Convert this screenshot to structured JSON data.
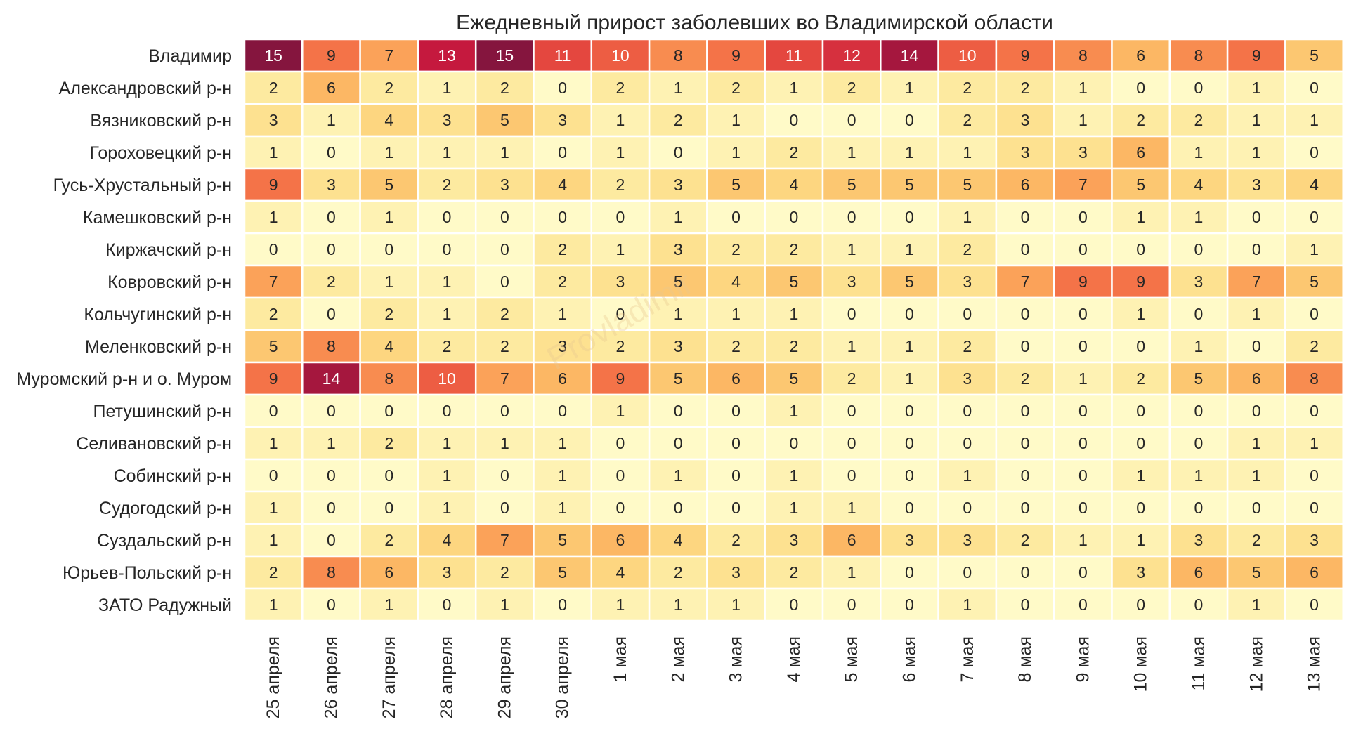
{
  "chart_data": {
    "type": "heatmap",
    "title": "Ежедневный прирост заболевших во Владимирской области",
    "xlabel": "",
    "ylabel": "",
    "watermark": "Provladimir",
    "columns": [
      "25 апреля",
      "26 апреля",
      "27 апреля",
      "28 апреля",
      "29 апреля",
      "30 апреля",
      "1 мая",
      "2 мая",
      "3 мая",
      "4 мая",
      "5 мая",
      "6 мая",
      "7 мая",
      "8 мая",
      "9 мая",
      "10 мая",
      "11 мая",
      "12 мая",
      "13 мая"
    ],
    "rows": [
      "Владимир",
      "Александровский р-н",
      "Вязниковский р-н",
      "Гороховецкий р-н",
      "Гусь-Хрустальный р-н",
      "Камешковский р-н",
      "Киржачский р-н",
      "Ковровский р-н",
      "Кольчугинский р-н",
      "Меленковский р-н",
      "Муромский р-н и о. Муром",
      "Петушинский р-н",
      "Селивановский р-н",
      "Собинский р-н",
      "Судогодский р-н",
      "Суздальский р-н",
      "Юрьев-Польский р-н",
      "ЗАТО Радужный"
    ],
    "values": [
      [
        15,
        9,
        7,
        13,
        15,
        11,
        10,
        8,
        9,
        11,
        12,
        14,
        10,
        9,
        8,
        6,
        8,
        9,
        5
      ],
      [
        2,
        6,
        2,
        1,
        2,
        0,
        2,
        1,
        2,
        1,
        2,
        1,
        2,
        2,
        1,
        0,
        0,
        1,
        0
      ],
      [
        3,
        1,
        4,
        3,
        5,
        3,
        1,
        2,
        1,
        0,
        0,
        0,
        2,
        3,
        1,
        2,
        2,
        1,
        1
      ],
      [
        1,
        0,
        1,
        1,
        1,
        0,
        1,
        0,
        1,
        2,
        1,
        1,
        1,
        3,
        3,
        6,
        1,
        1,
        0
      ],
      [
        9,
        3,
        5,
        2,
        3,
        4,
        2,
        3,
        5,
        4,
        5,
        5,
        5,
        6,
        7,
        5,
        4,
        3,
        4
      ],
      [
        1,
        0,
        1,
        0,
        0,
        0,
        0,
        1,
        0,
        0,
        0,
        0,
        1,
        0,
        0,
        1,
        1,
        0,
        0
      ],
      [
        0,
        0,
        0,
        0,
        0,
        2,
        1,
        3,
        2,
        2,
        1,
        1,
        2,
        0,
        0,
        0,
        0,
        0,
        1
      ],
      [
        7,
        2,
        1,
        1,
        0,
        2,
        3,
        5,
        4,
        5,
        3,
        5,
        3,
        7,
        9,
        9,
        3,
        7,
        5
      ],
      [
        2,
        0,
        2,
        1,
        2,
        1,
        0,
        1,
        1,
        1,
        0,
        0,
        0,
        0,
        0,
        1,
        0,
        1,
        0
      ],
      [
        5,
        8,
        4,
        2,
        2,
        3,
        2,
        3,
        2,
        2,
        1,
        1,
        2,
        0,
        0,
        0,
        1,
        0,
        2
      ],
      [
        9,
        14,
        8,
        10,
        7,
        6,
        9,
        5,
        6,
        5,
        2,
        1,
        3,
        2,
        1,
        2,
        5,
        6,
        8
      ],
      [
        0,
        0,
        0,
        0,
        0,
        0,
        1,
        0,
        0,
        1,
        0,
        0,
        0,
        0,
        0,
        0,
        0,
        0,
        0
      ],
      [
        1,
        1,
        2,
        1,
        1,
        1,
        0,
        0,
        0,
        0,
        0,
        0,
        0,
        0,
        0,
        0,
        0,
        1,
        1
      ],
      [
        0,
        0,
        0,
        1,
        0,
        1,
        0,
        1,
        0,
        1,
        0,
        0,
        1,
        0,
        0,
        1,
        1,
        1,
        0
      ],
      [
        1,
        0,
        0,
        1,
        0,
        1,
        0,
        0,
        0,
        1,
        1,
        0,
        0,
        0,
        0,
        0,
        0,
        0,
        0
      ],
      [
        1,
        0,
        2,
        4,
        7,
        5,
        6,
        4,
        2,
        3,
        6,
        3,
        3,
        2,
        1,
        1,
        3,
        2,
        3
      ],
      [
        2,
        8,
        6,
        3,
        2,
        5,
        4,
        2,
        3,
        2,
        1,
        0,
        0,
        0,
        0,
        3,
        6,
        5,
        6
      ],
      [
        1,
        0,
        1,
        0,
        1,
        0,
        1,
        1,
        1,
        0,
        0,
        0,
        1,
        0,
        0,
        0,
        0,
        1,
        0
      ]
    ],
    "value_range": [
      0,
      15
    ],
    "colormap": "YlOrRd",
    "annotations": true,
    "colorbar": false,
    "grid": false
  },
  "colors": {
    "text_dark": "#262626",
    "text_light": "#ffffff",
    "cell_border": "#ffffff"
  }
}
